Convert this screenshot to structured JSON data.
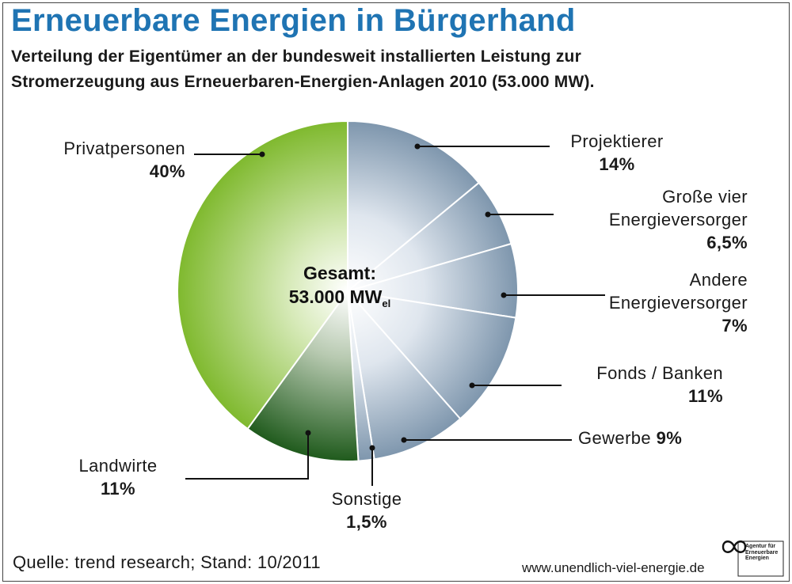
{
  "title": "Erneuerbare Energien in Bürgerhand",
  "subtitle_line1": "Verteilung der Eigentümer an der bundesweit installierten Leistung zur",
  "subtitle_line2": "Stromerzeugung aus Erneuerbaren-Energien-Anlagen 2010 (53.000 MW).",
  "center": {
    "line1": "Gesamt:",
    "line2": "53.000 MW",
    "sub": "el"
  },
  "source": "Quelle: trend research; Stand: 10/2011",
  "website": "www.unendlich-viel-energie.de",
  "logo_text": [
    "Agentur für",
    "Erneuerbare",
    "Energien"
  ],
  "colors": {
    "title": "#1f74b3",
    "privatpersonen": "#7fb92e",
    "landwirte": "#1f5a1c",
    "blue_segments": "#7e96ad"
  },
  "chart_data": {
    "type": "pie",
    "total": "53.000 MW",
    "slices": [
      {
        "name": "Projektierer",
        "value": 14,
        "display": "14%"
      },
      {
        "name": "Große vier Energieversorger",
        "value": 6.5,
        "display": "6,5%"
      },
      {
        "name": "Andere Energieversorger",
        "value": 7,
        "display": "7%"
      },
      {
        "name": "Fonds / Banken",
        "value": 11,
        "display": "11%"
      },
      {
        "name": "Gewerbe",
        "value": 9,
        "display": "9%"
      },
      {
        "name": "Sonstige",
        "value": 1.5,
        "display": "1,5%"
      },
      {
        "name": "Landwirte",
        "value": 11,
        "display": "11%"
      },
      {
        "name": "Privatpersonen",
        "value": 40,
        "display": "40%"
      }
    ]
  }
}
